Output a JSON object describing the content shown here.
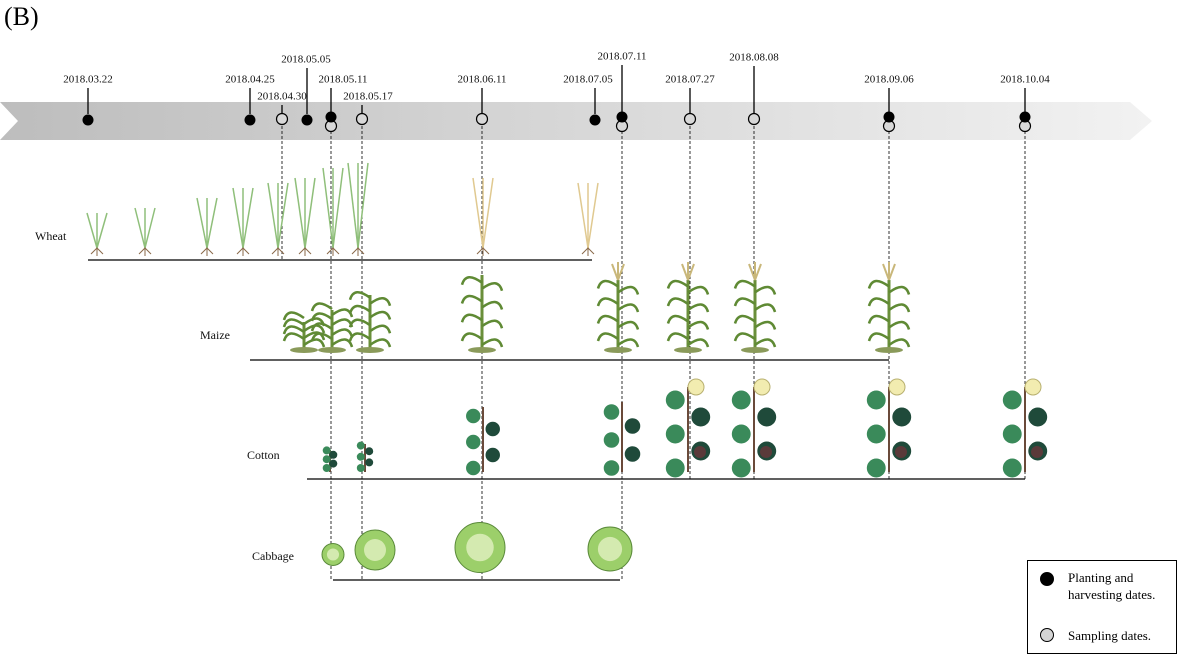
{
  "panel_label": "(B)",
  "dates": [
    "2018.03.22",
    "2018.04.25",
    "2018.04.30",
    "2018.05.05",
    "2018.05.11",
    "2018.05.17",
    "2018.06.11",
    "2018.07.05",
    "2018.07.11",
    "2018.07.27",
    "2018.08.08",
    "2018.09.06",
    "2018.10.04"
  ],
  "crops": [
    "Wheat",
    "Maize",
    "Cotton",
    "Cabbage"
  ],
  "legend": {
    "planting": "Planting and harvesting dates.",
    "sampling": "Sampling dates."
  }
}
